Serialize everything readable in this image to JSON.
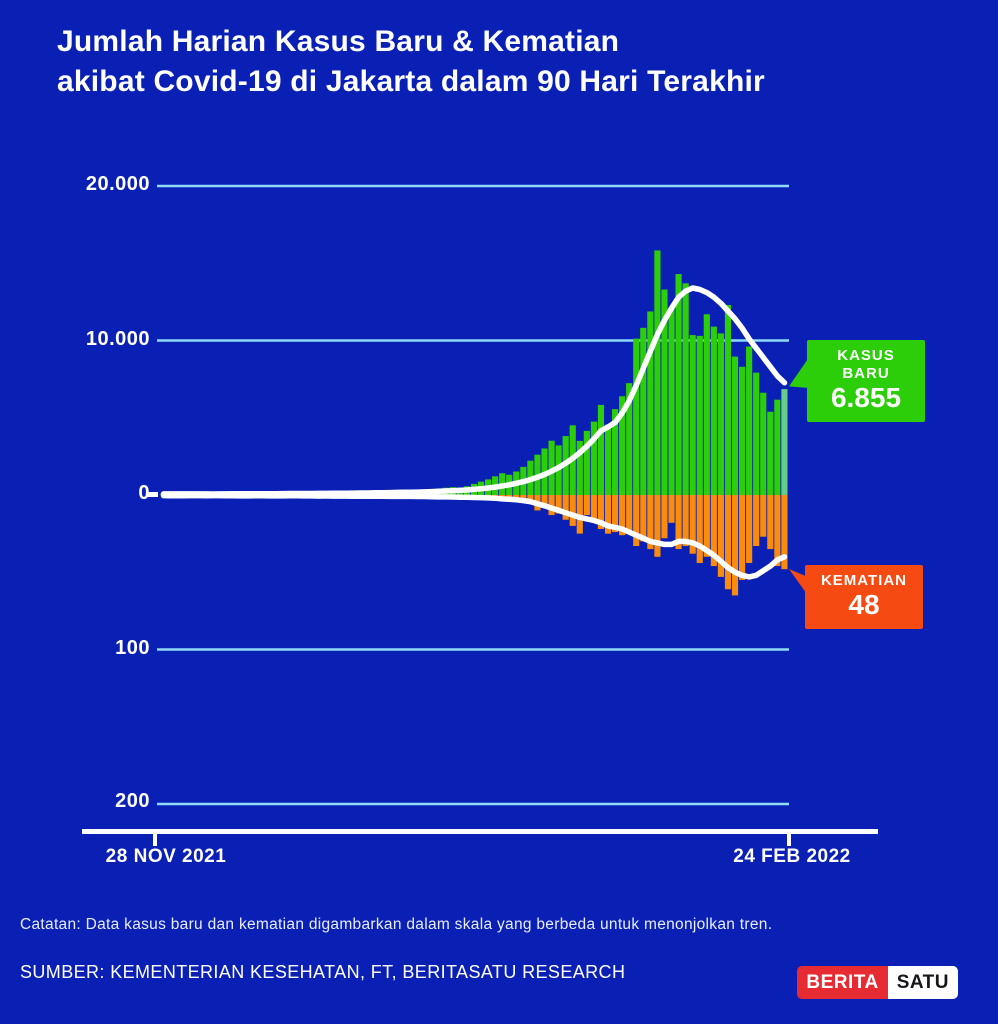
{
  "title": {
    "line1": "Jumlah Harian Kasus Baru & Kematian",
    "line2": "akibat Covid-19 di Jakarta dalam 90 Hari Terakhir"
  },
  "chart_data": {
    "type": "bar",
    "title": "Jumlah Harian Kasus Baru & Kematian akibat Covid-19 di Jakarta dalam 90 Hari Terakhir",
    "x_axis": {
      "start_label": "28 NOV 2021",
      "end_label": "24 FEB 2022"
    },
    "y_axis": [
      {
        "label": "20.000",
        "value": 20000,
        "axis": "cases"
      },
      {
        "label": "10.000",
        "value": 10000,
        "axis": "cases"
      },
      {
        "label": "0",
        "value": 0,
        "axis": "shared"
      },
      {
        "label": "100",
        "value": 100,
        "axis": "deaths"
      },
      {
        "label": "200",
        "value": 200,
        "axis": "deaths"
      }
    ],
    "axis_ranges": {
      "cases": [
        0,
        20000
      ],
      "deaths": [
        0,
        200
      ]
    },
    "grid": true,
    "series": {
      "cases_bars": {
        "name": "KASUS BARU",
        "color": "#2BCE08",
        "highlight_color": "#66CB8C",
        "values": [
          70,
          55,
          90,
          60,
          70,
          80,
          65,
          55,
          75,
          85,
          90,
          95,
          80,
          70,
          60,
          95,
          105,
          110,
          115,
          100,
          90,
          85,
          115,
          125,
          135,
          145,
          155,
          130,
          120,
          165,
          185,
          210,
          225,
          210,
          195,
          185,
          255,
          310,
          365,
          415,
          470,
          510,
          485,
          565,
          715,
          865,
          1010,
          1210,
          1410,
          1310,
          1520,
          1820,
          2220,
          2610,
          3010,
          3515,
          3210,
          3815,
          4510,
          3500,
          4150,
          4750,
          5830,
          4560,
          5560,
          6390,
          7240,
          10120,
          10820,
          11880,
          15830,
          13300,
          12150,
          14300,
          13700,
          10350,
          10300,
          11700,
          10900,
          10460,
          12300,
          8960,
          8300,
          9610,
          7920,
          6620,
          5390,
          6170,
          6855
        ]
      },
      "cases_trend": {
        "name": "KASUS BARU (tren)",
        "color": "#FFFFFF",
        "values": [
          70,
          68,
          70,
          71,
          70,
          71,
          69,
          67,
          68,
          72,
          76,
          80,
          82,
          81,
          79,
          80,
          83,
          90,
          95,
          99,
          100,
          99,
          101,
          104,
          107,
          112,
          118,
          124,
          127,
          131,
          140,
          147,
          155,
          166,
          172,
          178,
          188,
          202,
          219,
          237,
          257,
          280,
          300,
          325,
          360,
          400,
          450,
          510,
          580,
          660,
          760,
          870,
          1000,
          1150,
          1330,
          1540,
          1780,
          2060,
          2380,
          2740,
          3160,
          3630,
          4160,
          4400,
          4700,
          5300,
          6100,
          7100,
          8200,
          9300,
          10400,
          11300,
          12100,
          12800,
          13200,
          13400,
          13300,
          13100,
          12800,
          12400,
          11900,
          11400,
          10800,
          10100,
          9500,
          8900,
          8300,
          7700,
          7270
        ]
      },
      "deaths_bars": {
        "name": "KEMATIAN",
        "color": "#F98B0E",
        "values": [
          0,
          1,
          0,
          1,
          0,
          0,
          1,
          0,
          0,
          1,
          0,
          1,
          1,
          0,
          0,
          1,
          0,
          1,
          0,
          0,
          1,
          0,
          1,
          0,
          1,
          1,
          0,
          1,
          0,
          1,
          1,
          0,
          1,
          1,
          1,
          0,
          1,
          1,
          2,
          1,
          1,
          2,
          1,
          2,
          2,
          1,
          2,
          3,
          2,
          3,
          3,
          4,
          3,
          10,
          8,
          13,
          12,
          16,
          20,
          25,
          13,
          17,
          22,
          25,
          24,
          26,
          25,
          33,
          30,
          35,
          40,
          28,
          18,
          35,
          33,
          38,
          44,
          40,
          46,
          53,
          61,
          65,
          55,
          44,
          33,
          27,
          35,
          46,
          48
        ]
      },
      "deaths_trend": {
        "name": "KEMATIAN (tren)",
        "color": "#FFFFFF",
        "values": [
          0.4,
          0.5,
          0.4,
          0.5,
          0.4,
          0.4,
          0.5,
          0.4,
          0.4,
          0.5,
          0.5,
          0.6,
          0.6,
          0.5,
          0.5,
          0.6,
          0.6,
          0.6,
          0.5,
          0.5,
          0.6,
          0.6,
          0.7,
          0.6,
          0.7,
          0.7,
          0.7,
          0.8,
          0.7,
          0.8,
          0.8,
          0.8,
          0.9,
          0.9,
          0.9,
          0.9,
          1.0,
          1.0,
          1.1,
          1.2,
          1.2,
          1.3,
          1.4,
          1.5,
          1.6,
          1.7,
          1.9,
          2.1,
          2.5,
          2.8,
          3.1,
          3.6,
          4.3,
          5.7,
          7.0,
          8.5,
          10,
          11.5,
          13,
          14.5,
          15.5,
          16.5,
          18,
          20,
          21,
          22,
          24,
          26,
          28,
          30,
          31,
          32,
          32,
          30,
          30,
          31,
          33,
          36,
          39,
          43,
          47,
          50,
          52,
          53,
          52,
          49,
          46,
          42,
          40
        ]
      }
    }
  },
  "callouts": {
    "cases": {
      "label": "KASUS BARU",
      "value": "6.855",
      "color": "#2BCE08"
    },
    "deaths": {
      "label": "KEMATIAN",
      "value": "48",
      "color": "#F54A12"
    }
  },
  "note": "Catatan: Data kasus baru dan kematian digambarkan dalam skala yang berbeda untuk menonjolkan tren.",
  "source": "SUMBER: KEMENTERIAN KESEHATAN, FT, BERITASATU RESEARCH",
  "logo": {
    "part1": "BERITA",
    "part2": "SATU",
    "part1_color": "#E62C32"
  },
  "colors": {
    "background": "#0A20B5",
    "gridline": "#90D9F7",
    "axis": "#FFFFFF",
    "text": "#FFFFFF"
  }
}
